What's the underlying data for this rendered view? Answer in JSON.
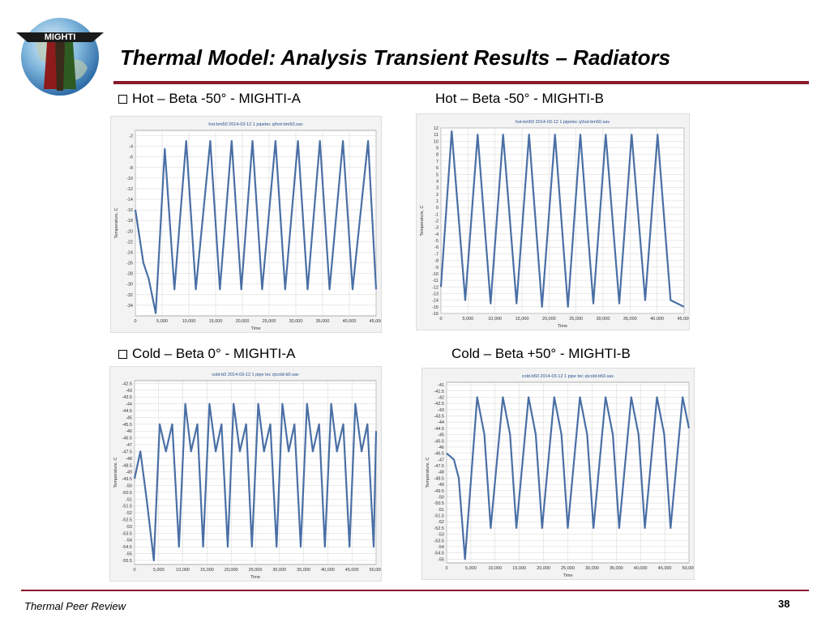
{
  "slide": {
    "title": "Thermal Model:  Analysis Transient Results – Radiators",
    "logo_text": "MIGHTI",
    "footer": "Thermal Peer Review",
    "page_number": "38",
    "accent_color": "#8b1a2b"
  },
  "subtitles": [
    {
      "text": "Hot – Beta -50° - MIGHTI-A",
      "bullet": true
    },
    {
      "text": "Hot – Beta -50° - MIGHTI-B",
      "bullet": false
    },
    {
      "text": "Cold – Beta 0° - MIGHTI-A",
      "bullet": true
    },
    {
      "text": "Cold – Beta +50° - MIGHTI-B",
      "bullet": false
    }
  ],
  "chart_data": [
    {
      "type": "line",
      "title": "hot-bm50 2014-03-12 1 pipetec q\\hot-bm50.sav",
      "xlabel": "Time",
      "ylabel": "Temperature, C",
      "xlim": [
        0,
        45000
      ],
      "ylim": [
        -36,
        -1
      ],
      "xticks": [
        0,
        5000,
        10000,
        15000,
        20000,
        25000,
        30000,
        35000,
        40000,
        45000
      ],
      "yticks": [
        -2,
        -4,
        -6,
        -8,
        -10,
        -12,
        -14,
        -16,
        -18,
        -20,
        -22,
        -24,
        -26,
        -28,
        -30,
        -32,
        -34
      ],
      "grid": true,
      "series_color": "#4a6fa5",
      "series": [
        {
          "x": [
            0,
            1500,
            2500,
            3800,
            5500,
            7300,
            9500,
            11300,
            14000,
            15800,
            18000,
            19800,
            21900,
            23700,
            26200,
            28000,
            30400,
            32200,
            34500,
            36300,
            38800,
            40600,
            43500,
            45000
          ],
          "y": [
            -16,
            -26,
            -29,
            -35.5,
            -4.5,
            -31,
            -3,
            -31,
            -3,
            -31,
            -3,
            -31,
            -3,
            -31,
            -3,
            -31,
            -3,
            -31,
            -3,
            -31,
            -3,
            -31,
            -3,
            -31
          ]
        }
      ]
    },
    {
      "type": "line",
      "title": "hot-bm50 2014-03-12 1 pipetec q\\hot-bm50.sav",
      "xlabel": "Time",
      "ylabel": "Temperature, C",
      "xlim": [
        0,
        45000
      ],
      "ylim": [
        -16,
        12
      ],
      "xticks": [
        0,
        5000,
        10000,
        15000,
        20000,
        25000,
        30000,
        35000,
        40000,
        45000
      ],
      "yticks": [
        12,
        11,
        10,
        9,
        8,
        7,
        6,
        5,
        4,
        3,
        2,
        1,
        0,
        -1,
        -2,
        -3,
        -4,
        -5,
        -6,
        -7,
        -8,
        -9,
        -10,
        -11,
        -12,
        -13,
        -14,
        -15,
        -16
      ],
      "grid": true,
      "series_color": "#4a6fa5",
      "series": [
        {
          "x": [
            0,
            2000,
            4500,
            6800,
            9200,
            11500,
            14000,
            16300,
            18700,
            21100,
            23500,
            25800,
            28200,
            30500,
            33000,
            35300,
            37800,
            40100,
            42500,
            45000
          ],
          "y": [
            -12,
            11.5,
            -14,
            11,
            -14.5,
            11,
            -14.5,
            11,
            -15,
            11,
            -15,
            11,
            -14.5,
            11,
            -14.5,
            11,
            -14,
            11,
            -14,
            -15
          ]
        }
      ]
    },
    {
      "type": "line",
      "title": "cold-b0 2014-03-12 1 pipe tec q\\cold-b0.sav",
      "xlabel": "Time",
      "ylabel": "Temperature, C",
      "xlim": [
        0,
        50000
      ],
      "ylim": [
        -55.8,
        -42.3
      ],
      "xticks": [
        0,
        5000,
        10000,
        15000,
        20000,
        25000,
        30000,
        35000,
        40000,
        45000,
        50000
      ],
      "yticks": [
        -42.5,
        -43,
        -43.5,
        -44,
        -44.5,
        -45,
        -45.5,
        -46,
        -46.5,
        -47,
        -47.5,
        -48,
        -48.5,
        -49,
        -49.5,
        -50,
        -50.5,
        -51,
        -51.5,
        -52,
        -52.5,
        -53,
        -53.5,
        -54,
        -54.5,
        -55,
        -55.5
      ],
      "grid": true,
      "series_color": "#4a6fa5",
      "series": [
        {
          "x": [
            0,
            1200,
            2500,
            4000,
            5200,
            6500,
            7800,
            9200,
            10500,
            11700,
            13000,
            14200,
            15500,
            16800,
            18000,
            19300,
            20500,
            21800,
            23100,
            24300,
            25600,
            26800,
            28100,
            29400,
            30600,
            31900,
            33100,
            34400,
            35700,
            36900,
            38200,
            39400,
            40700,
            41900,
            43200,
            44500,
            45700,
            47000,
            48200,
            49500,
            50000
          ],
          "y": [
            -49.5,
            -47.5,
            -51,
            -55.5,
            -45.5,
            -47.5,
            -45.5,
            -54.5,
            -44,
            -47.5,
            -45.5,
            -54.5,
            -44,
            -47.5,
            -45.5,
            -54.5,
            -44,
            -47.5,
            -45.5,
            -54.5,
            -44,
            -47.5,
            -45.5,
            -54.5,
            -44,
            -47.5,
            -45.5,
            -54.5,
            -44,
            -47.5,
            -45.5,
            -54.5,
            -44,
            -47.5,
            -45.5,
            -54.5,
            -44,
            -47.5,
            -45.5,
            -54.5,
            -46
          ]
        }
      ]
    },
    {
      "type": "line",
      "title": "cold-b50 2014-03-12 1 pipe tec q\\cold-b50.sav",
      "xlabel": "Time",
      "ylabel": "Temperature, C",
      "xlim": [
        0,
        50000
      ],
      "ylim": [
        -55.3,
        -40.8
      ],
      "xticks": [
        0,
        5000,
        10000,
        15000,
        20000,
        25000,
        30000,
        35000,
        40000,
        45000,
        50000
      ],
      "yticks": [
        -41,
        -41.5,
        -42,
        -42.5,
        -43,
        -43.5,
        -44,
        -44.5,
        -45,
        -45.5,
        -46,
        -46.5,
        -47,
        -47.5,
        -48,
        -48.5,
        -49,
        -49.5,
        -50,
        -50.5,
        -51,
        -51.5,
        -52,
        -52.5,
        -53,
        -53.5,
        -54,
        -54.5,
        -55
      ],
      "grid": true,
      "series_color": "#4a6fa5",
      "series": [
        {
          "x": [
            0,
            1500,
            2500,
            3800,
            6300,
            7800,
            9100,
            11600,
            13100,
            14400,
            16900,
            18400,
            19700,
            22200,
            23700,
            25000,
            27500,
            29000,
            30300,
            32800,
            34300,
            35600,
            38100,
            39600,
            40900,
            43400,
            44900,
            46200,
            48700,
            50000
          ],
          "y": [
            -46.5,
            -47,
            -48.5,
            -55,
            -42,
            -45,
            -52.5,
            -42,
            -45,
            -52.5,
            -42,
            -45,
            -52.5,
            -42,
            -45,
            -52.5,
            -42,
            -45,
            -52.5,
            -42,
            -45,
            -52.5,
            -42,
            -45,
            -52.5,
            -42,
            -45,
            -52.5,
            -42,
            -44.5
          ]
        }
      ]
    }
  ]
}
